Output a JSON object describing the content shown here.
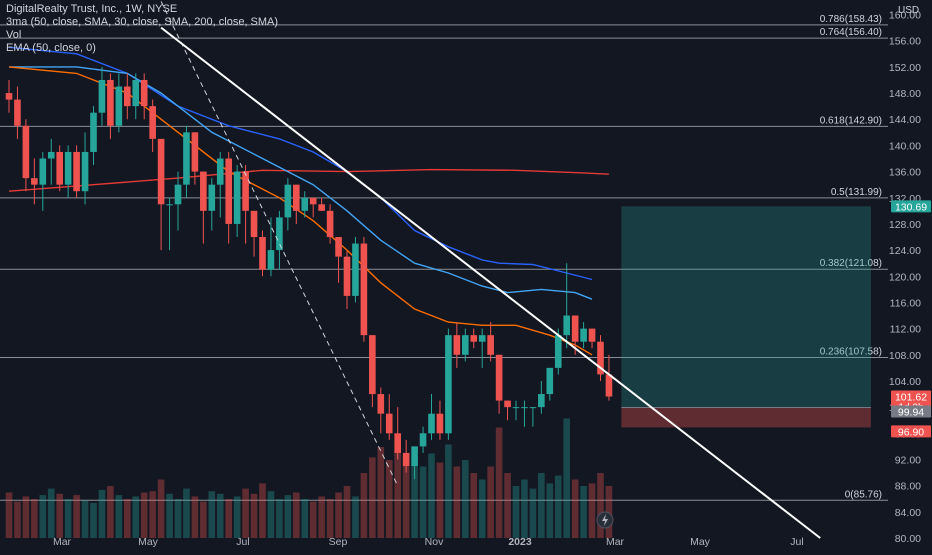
{
  "header": {
    "title": "DigitalRealty Trust, Inc., 1W, NYSE",
    "indicator_ma": "3ma (50, close, SMA, 30, close, SMA, 200, close, SMA)",
    "indicator_vol": "Vol",
    "indicator_ema": "EMA (50, close, 0)"
  },
  "chart_data": {
    "type": "candlestick",
    "currency_label": "USD",
    "ylim": [
      80,
      161
    ],
    "y_ticks": [
      "80.00",
      "84.00",
      "88.00",
      "92.00",
      "96.00",
      "100.00",
      "104.00",
      "108.00",
      "112.00",
      "116.00",
      "120.00",
      "124.00",
      "128.00",
      "132.00",
      "136.00",
      "140.00",
      "144.00",
      "148.00",
      "152.00",
      "156.00",
      "160.00"
    ],
    "x_ticks": [
      "Mar",
      "May",
      "Jul",
      "Sep",
      "Nov",
      "2023",
      "Mar",
      "May",
      "Jul"
    ],
    "fib_levels": [
      {
        "label": "0.786(158.43)",
        "value": 158.43
      },
      {
        "label": "0.764(156.40)",
        "value": 156.4
      },
      {
        "label": "0.618(142.90)",
        "value": 142.9
      },
      {
        "label": "0.5(131.99)",
        "value": 131.99
      },
      {
        "label": "0.382(121.08)",
        "value": 121.08
      },
      {
        "label": "0.236(107.58)",
        "value": 107.58
      },
      {
        "label": "0(85.76)",
        "value": 85.76
      }
    ],
    "price_badges": [
      {
        "label": "130.69",
        "value": 130.69,
        "color": "#26a69a"
      },
      {
        "label": "101.62",
        "sub": "1d 2h",
        "value": 101.62,
        "color": "#ef5350"
      },
      {
        "label": "99.94",
        "value": 99.94,
        "color": "#787b86"
      },
      {
        "label": "96.90",
        "value": 96.9,
        "color": "#ef5350"
      }
    ],
    "candles": [
      {
        "o": 148,
        "h": 150,
        "l": 145,
        "c": 147
      },
      {
        "o": 147,
        "h": 149,
        "l": 141,
        "c": 143
      },
      {
        "o": 143,
        "h": 144,
        "l": 133,
        "c": 135
      },
      {
        "o": 135,
        "h": 138,
        "l": 131,
        "c": 134
      },
      {
        "o": 134,
        "h": 139,
        "l": 130,
        "c": 138
      },
      {
        "o": 138,
        "h": 141,
        "l": 134,
        "c": 139
      },
      {
        "o": 139,
        "h": 140,
        "l": 133,
        "c": 134
      },
      {
        "o": 134,
        "h": 140,
        "l": 132,
        "c": 139
      },
      {
        "o": 139,
        "h": 140,
        "l": 132,
        "c": 133
      },
      {
        "o": 133,
        "h": 142,
        "l": 131,
        "c": 139
      },
      {
        "o": 139,
        "h": 146,
        "l": 137,
        "c": 145
      },
      {
        "o": 145,
        "h": 152,
        "l": 143,
        "c": 150
      },
      {
        "o": 150,
        "h": 151,
        "l": 141,
        "c": 143
      },
      {
        "o": 143,
        "h": 151,
        "l": 142,
        "c": 149
      },
      {
        "o": 149,
        "h": 151,
        "l": 144,
        "c": 146
      },
      {
        "o": 146,
        "h": 151,
        "l": 144,
        "c": 150
      },
      {
        "o": 150,
        "h": 151,
        "l": 144,
        "c": 146
      },
      {
        "o": 146,
        "h": 147,
        "l": 139,
        "c": 141
      },
      {
        "o": 141,
        "h": 141,
        "l": 124,
        "c": 131
      },
      {
        "o": 131,
        "h": 132,
        "l": 124,
        "c": 131
      },
      {
        "o": 131,
        "h": 136,
        "l": 127,
        "c": 134
      },
      {
        "o": 134,
        "h": 143,
        "l": 132,
        "c": 142
      },
      {
        "o": 142,
        "h": 142,
        "l": 134,
        "c": 136
      },
      {
        "o": 136,
        "h": 136,
        "l": 125,
        "c": 130
      },
      {
        "o": 130,
        "h": 135,
        "l": 127,
        "c": 134
      },
      {
        "o": 134,
        "h": 139,
        "l": 129,
        "c": 138
      },
      {
        "o": 138,
        "h": 139,
        "l": 125,
        "c": 128
      },
      {
        "o": 128,
        "h": 137,
        "l": 126,
        "c": 136
      },
      {
        "o": 136,
        "h": 137,
        "l": 125,
        "c": 130
      },
      {
        "o": 130,
        "h": 130,
        "l": 123,
        "c": 126
      },
      {
        "o": 126,
        "h": 127,
        "l": 120,
        "c": 121
      },
      {
        "o": 121,
        "h": 129,
        "l": 120,
        "c": 124
      },
      {
        "o": 124,
        "h": 130,
        "l": 121,
        "c": 129
      },
      {
        "o": 129,
        "h": 135,
        "l": 127,
        "c": 134
      },
      {
        "o": 134,
        "h": 134,
        "l": 128,
        "c": 130
      },
      {
        "o": 130,
        "h": 133,
        "l": 129,
        "c": 132
      },
      {
        "o": 132,
        "h": 132,
        "l": 129,
        "c": 131
      },
      {
        "o": 131,
        "h": 132,
        "l": 130,
        "c": 130
      },
      {
        "o": 130,
        "h": 131,
        "l": 125,
        "c": 126
      },
      {
        "o": 126,
        "h": 126,
        "l": 119,
        "c": 123
      },
      {
        "o": 123,
        "h": 124,
        "l": 115,
        "c": 117
      },
      {
        "o": 117,
        "h": 126,
        "l": 116,
        "c": 125
      },
      {
        "o": 125,
        "h": 126,
        "l": 110,
        "c": 111
      },
      {
        "o": 111,
        "h": 111,
        "l": 100,
        "c": 102
      },
      {
        "o": 102,
        "h": 103,
        "l": 96,
        "c": 99
      },
      {
        "o": 99,
        "h": 102,
        "l": 95,
        "c": 96
      },
      {
        "o": 96,
        "h": 100,
        "l": 92,
        "c": 93
      },
      {
        "o": 93,
        "h": 95,
        "l": 90,
        "c": 91
      },
      {
        "o": 91,
        "h": 94,
        "l": 89,
        "c": 94
      },
      {
        "o": 94,
        "h": 97,
        "l": 93,
        "c": 96
      },
      {
        "o": 96,
        "h": 102,
        "l": 95,
        "c": 99
      },
      {
        "o": 99,
        "h": 101,
        "l": 95,
        "c": 96
      },
      {
        "o": 96,
        "h": 112,
        "l": 95,
        "c": 111
      },
      {
        "o": 111,
        "h": 113,
        "l": 106,
        "c": 108
      },
      {
        "o": 108,
        "h": 112,
        "l": 107,
        "c": 111
      },
      {
        "o": 111,
        "h": 112,
        "l": 109,
        "c": 110
      },
      {
        "o": 110,
        "h": 112,
        "l": 106,
        "c": 111
      },
      {
        "o": 111,
        "h": 113,
        "l": 107,
        "c": 108
      },
      {
        "o": 108,
        "h": 108,
        "l": 99,
        "c": 101
      },
      {
        "o": 101,
        "h": 101,
        "l": 98,
        "c": 100
      },
      {
        "o": 100,
        "h": 101,
        "l": 98,
        "c": 100
      },
      {
        "o": 100,
        "h": 101,
        "l": 97,
        "c": 100
      },
      {
        "o": 100,
        "h": 100,
        "l": 97,
        "c": 100
      },
      {
        "o": 100,
        "h": 104,
        "l": 99,
        "c": 102
      },
      {
        "o": 102,
        "h": 106,
        "l": 101,
        "c": 106
      },
      {
        "o": 106,
        "h": 112,
        "l": 105,
        "c": 111
      },
      {
        "o": 111,
        "h": 122,
        "l": 109,
        "c": 114
      },
      {
        "o": 114,
        "h": 114,
        "l": 108,
        "c": 110
      },
      {
        "o": 110,
        "h": 113,
        "l": 109,
        "c": 112
      },
      {
        "o": 112,
        "h": 112,
        "l": 109,
        "c": 110
      },
      {
        "o": 110,
        "h": 111,
        "l": 104,
        "c": 105
      },
      {
        "o": 105,
        "h": 108,
        "l": 101,
        "c": 101.62
      }
    ],
    "volumes": [
      0.35,
      0.28,
      0.32,
      0.3,
      0.33,
      0.38,
      0.34,
      0.3,
      0.33,
      0.29,
      0.27,
      0.37,
      0.4,
      0.33,
      0.3,
      0.32,
      0.35,
      0.36,
      0.45,
      0.34,
      0.3,
      0.38,
      0.32,
      0.28,
      0.36,
      0.34,
      0.3,
      0.32,
      0.38,
      0.34,
      0.42,
      0.36,
      0.3,
      0.33,
      0.35,
      0.3,
      0.28,
      0.32,
      0.3,
      0.35,
      0.4,
      0.32,
      0.5,
      0.62,
      0.7,
      0.6,
      0.7,
      0.62,
      0.6,
      0.55,
      0.65,
      0.58,
      0.72,
      0.55,
      0.6,
      0.5,
      0.45,
      0.55,
      0.85,
      0.5,
      0.4,
      0.45,
      0.38,
      0.5,
      0.42,
      0.48,
      0.92,
      0.45,
      0.4,
      0.42,
      0.5,
      0.4
    ],
    "series": [
      {
        "name": "SMA 200",
        "color": "#e53935",
        "points": [
          [
            0,
            133
          ],
          [
            10,
            134
          ],
          [
            20,
            135
          ],
          [
            30,
            136.2
          ],
          [
            40,
            136
          ],
          [
            50,
            136.3
          ],
          [
            60,
            136.2
          ],
          [
            68,
            135.8
          ],
          [
            71,
            135.6
          ]
        ]
      },
      {
        "name": "SMA 50",
        "color": "#2962ff",
        "points": [
          [
            0,
            155
          ],
          [
            8,
            154
          ],
          [
            14,
            151
          ],
          [
            20,
            146
          ],
          [
            26,
            143
          ],
          [
            32,
            141
          ],
          [
            36,
            139
          ],
          [
            40,
            136
          ],
          [
            44,
            132
          ],
          [
            48,
            127
          ],
          [
            52,
            124.5
          ],
          [
            56,
            122.5
          ],
          [
            58,
            122
          ],
          [
            62,
            121.8
          ],
          [
            66,
            120.5
          ],
          [
            69,
            119.5
          ]
        ]
      },
      {
        "name": "SMA 30",
        "color": "#42a5f5",
        "points": [
          [
            0,
            152
          ],
          [
            8,
            152
          ],
          [
            14,
            151
          ],
          [
            18,
            148
          ],
          [
            24,
            142
          ],
          [
            30,
            138
          ],
          [
            36,
            134
          ],
          [
            40,
            130
          ],
          [
            44,
            125.5
          ],
          [
            48,
            122
          ],
          [
            52,
            120.5
          ],
          [
            56,
            118.5
          ],
          [
            59,
            117.5
          ],
          [
            63,
            118
          ],
          [
            67,
            117.5
          ],
          [
            69,
            116.5
          ]
        ]
      },
      {
        "name": "EMA 50",
        "color": "#ff6d00",
        "points": [
          [
            0,
            152
          ],
          [
            8,
            151
          ],
          [
            14,
            148
          ],
          [
            20,
            142
          ],
          [
            26,
            136
          ],
          [
            32,
            132
          ],
          [
            36,
            128.5
          ],
          [
            40,
            124
          ],
          [
            44,
            119
          ],
          [
            48,
            115
          ],
          [
            52,
            113
          ],
          [
            56,
            112.5
          ],
          [
            60,
            112.5
          ],
          [
            64,
            111
          ],
          [
            67,
            109.5
          ],
          [
            69,
            108
          ]
        ]
      }
    ],
    "trendline_dashed": {
      "start": [
        18,
        162
      ],
      "end": [
        46,
        88
      ]
    },
    "trendline_solid": {
      "start": [
        18,
        158
      ],
      "end": [
        96,
        80
      ]
    },
    "position_box": {
      "entry": 99.94,
      "target": 130.69,
      "stop": 96.9,
      "from_index": 72,
      "to_index": 102
    }
  }
}
